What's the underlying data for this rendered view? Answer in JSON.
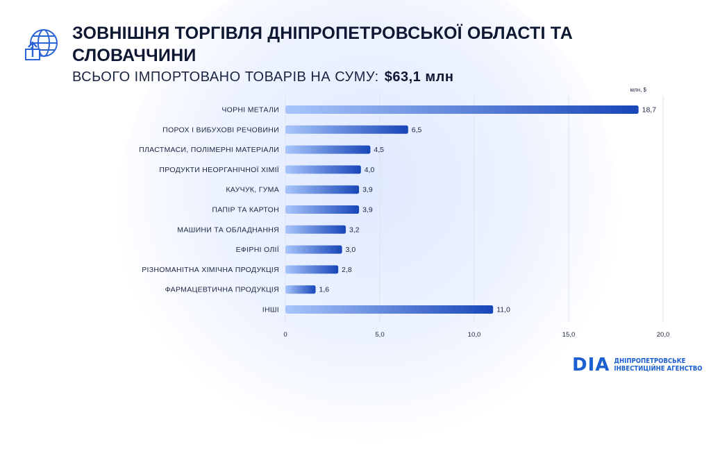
{
  "header": {
    "title": "ЗОВНІШНЯ ТОРГІВЛЯ ДНІПРОПЕТРОВСЬКОЇ ОБЛАСТІ ТА СЛОВАЧЧИНИ",
    "subtitle_label": "ВСЬОГО ІМПОРТОВАНО ТОВАРІВ НА СУМУ:",
    "subtitle_total": "$63,1 млн",
    "icon": "globe-export-icon"
  },
  "chart_data": {
    "type": "bar",
    "orientation": "horizontal",
    "unit_label": "млн, $",
    "categories": [
      "ЧОРНІ МЕТАЛИ",
      "ПОРОХ І ВИБУХОВІ РЕЧОВИНИ",
      "ПЛАСТМАСИ, ПОЛІМЕРНІ МАТЕРІАЛИ",
      "ПРОДУКТИ НЕОРГАНІЧНОЇ ХІМІЇ",
      "КАУЧУК, ГУМА",
      "ПАПІР ТА КАРТОН",
      "МАШИНИ ТА ОБЛАДНАННЯ",
      "ЕФІРНІ ОЛІЇ",
      "РІЗНОМАНІТНА ХІМІЧНА ПРОДУКЦІЯ",
      "ФАРМАЦЕВТИЧНА ПРОДУКЦІЯ",
      "ІНШІ"
    ],
    "values": [
      18.7,
      6.5,
      4.5,
      4.0,
      3.9,
      3.9,
      3.2,
      3.0,
      2.8,
      1.6,
      11.0
    ],
    "value_labels": [
      "18,7",
      "6,5",
      "4,5",
      "4,0",
      "3,9",
      "3,9",
      "3,2",
      "3,0",
      "2,8",
      "1,6",
      "11,0"
    ],
    "xlim": [
      0,
      20
    ],
    "xticks": [
      0,
      5,
      10,
      15,
      20
    ],
    "xtick_labels": [
      "0",
      "5,0",
      "10,0",
      "15,0",
      "20,0"
    ],
    "grid": true,
    "colors": {
      "bar_start": "#a9c6fb",
      "bar_end": "#1746b8",
      "grid": "#dfe3ea",
      "text": "#1b2440"
    }
  },
  "logo": {
    "mark": "DIA",
    "line1": "ДНІПРОПЕТРОВСЬКЕ",
    "line2": "ІНВЕСТИЦІЙНЕ АГЕНСТВО"
  }
}
